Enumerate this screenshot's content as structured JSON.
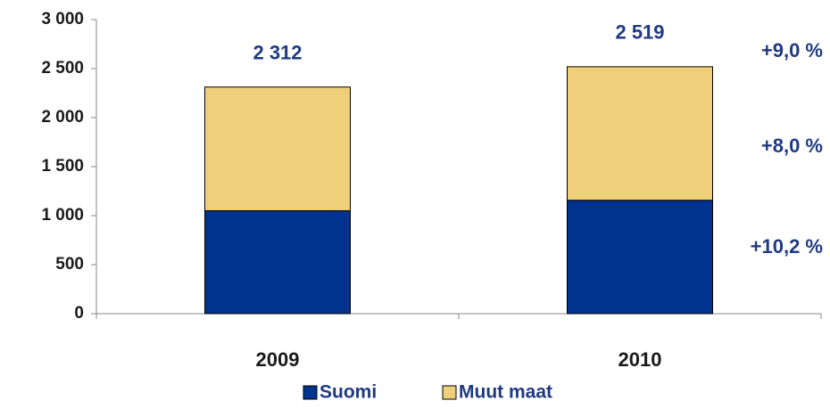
{
  "chart_data": {
    "type": "stacked_bar",
    "categories": [
      "2009",
      "2010"
    ],
    "series": [
      {
        "name": "Suomi",
        "color": "#00338d",
        "values": [
          1050,
          1157
        ]
      },
      {
        "name": "Muut maat",
        "color": "#f0cf7b",
        "values": [
          1262,
          1362
        ]
      }
    ],
    "total_labels": [
      "2 312",
      "2 519"
    ],
    "annotations": [
      "+9,0 %",
      "+8,0 %",
      "+10,2 %"
    ],
    "ylim": [
      0,
      3000
    ],
    "yticks": [
      0,
      500,
      {
        "value": 1000,
        "label": "1 000"
      },
      {
        "value": 1500,
        "label": "1 500"
      },
      {
        "value": 2000,
        "label": "2 000"
      },
      {
        "value": 2500,
        "label": "2 500"
      },
      {
        "value": 3000,
        "label": "3 000"
      }
    ],
    "grid": false,
    "legend": "bottom"
  }
}
